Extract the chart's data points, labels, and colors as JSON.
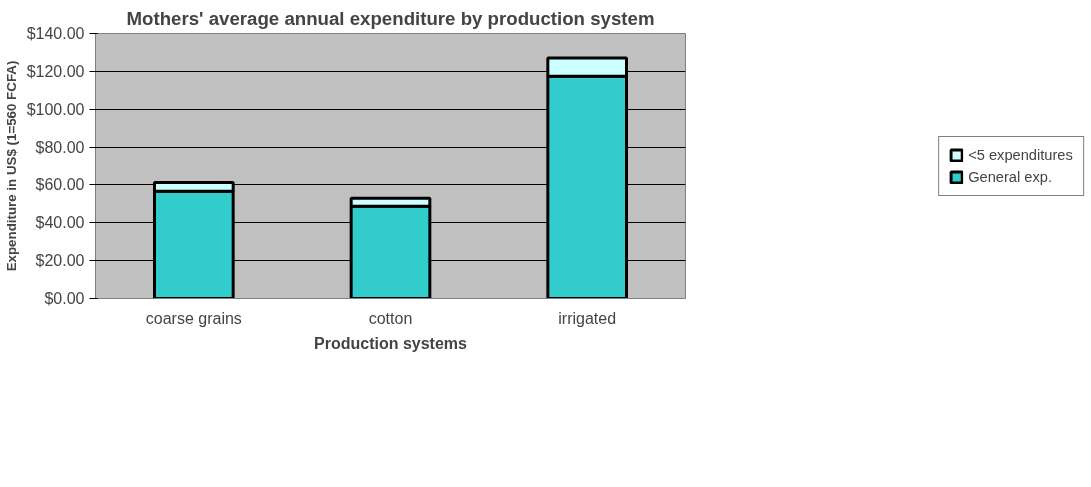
{
  "chart_data": {
    "type": "bar",
    "title": "Mothers' average annual expenditure by production system",
    "xlabel": "Production systems",
    "ylabel": "Expenditure in US$ (1=560 FCFA)",
    "categories": [
      "coarse grains",
      "cotton",
      "irrigated"
    ],
    "stacked": true,
    "series": [
      {
        "name": "General exp.",
        "color": "#33cccc",
        "values": [
          56.7,
          48.7,
          117.4
        ]
      },
      {
        "name": "<5 expenditures",
        "color": "#ccffff",
        "values": [
          4.6,
          4.2,
          9.6
        ]
      }
    ],
    "ylim": [
      0,
      140
    ],
    "yticks": [
      {
        "value": 0,
        "label": "$0.00"
      },
      {
        "value": 20,
        "label": "$20.00"
      },
      {
        "value": 40,
        "label": "$40.00"
      },
      {
        "value": 60,
        "label": "$60.00"
      },
      {
        "value": 80,
        "label": "$80.00"
      },
      {
        "value": 100,
        "label": "$100.00"
      },
      {
        "value": 120,
        "label": "$120.00"
      },
      {
        "value": 140,
        "label": "$140.00"
      }
    ],
    "grid": "y",
    "legend": "right"
  }
}
